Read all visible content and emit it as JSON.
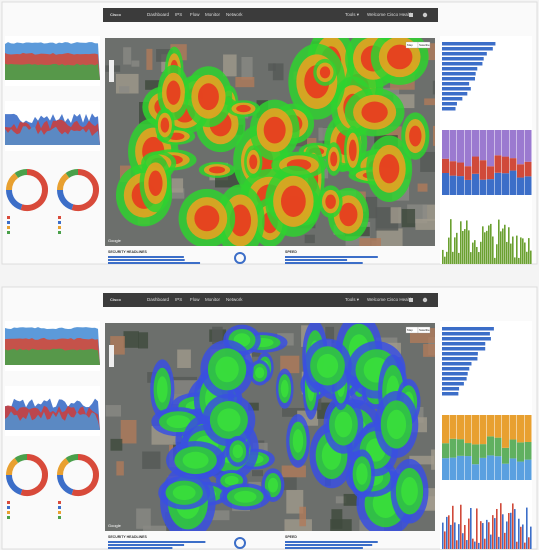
{
  "screens": [
    {
      "nav": {
        "logo": "Cisco",
        "items": [
          "Dashboard",
          "IPS",
          "Flow",
          "Monitor",
          "Network"
        ],
        "tools": "Tools ▾",
        "welcome": "Welcome Cisco Health"
      },
      "map": {
        "buttons": [
          "Map",
          "Satellite"
        ],
        "credit": "Google",
        "heat": [
          "#2fd22f",
          "#f0a020",
          "#e8321e"
        ]
      },
      "bottom": [
        "SECURITY HEADLINES",
        "SPEED"
      ]
    },
    {
      "nav": {
        "logo": "Cisco",
        "items": [
          "Dashboard",
          "IPS",
          "Flow",
          "Monitor",
          "Network"
        ],
        "tools": "Tools ▾",
        "welcome": "Welcome Cisco Health"
      },
      "map": {
        "buttons": [
          "Map",
          "Satellite"
        ],
        "credit": "Google",
        "heat": [
          "#3a50e0",
          "#2fd22f",
          "#3ae03a"
        ]
      },
      "bottom": [
        "SECURITY HEADLINES",
        "SPEED"
      ]
    }
  ]
}
